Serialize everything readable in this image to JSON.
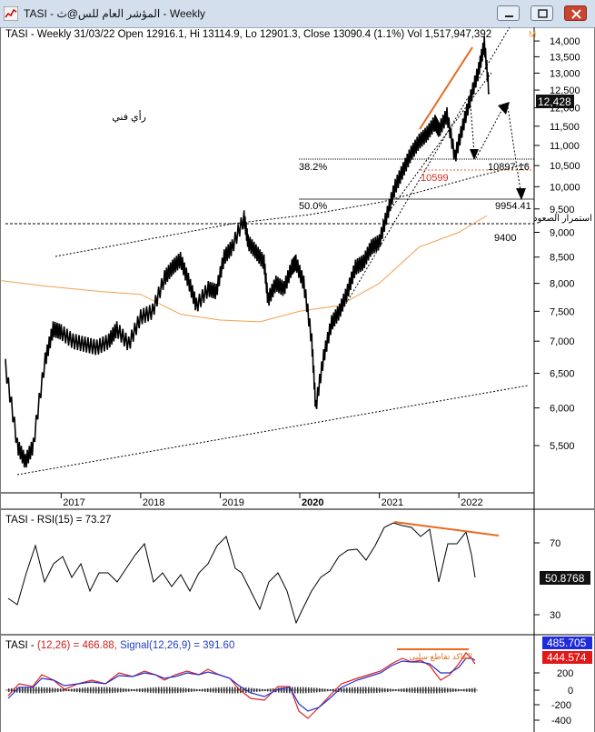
{
  "window": {
    "title": "TASI - المؤشر العام للس@ث - Weekly",
    "accent": "#d4dfee",
    "close_color": "#c9452f"
  },
  "chart_data": [
    {
      "type": "line",
      "panel": "price",
      "header": "TASI - Weekly 31/03/22 Open 12916.1, Hi 13114.9, Lo 12901.3, Close 13090.4 (1.1%) Vol 1,517,947,392",
      "header_marker": "M",
      "x_labels": [
        "2017",
        "2018",
        "2019",
        "2020",
        "2021",
        "2022"
      ],
      "y_ticks": [
        "14,000",
        "13,500",
        "13,000",
        "12,500",
        "12,000",
        "11,500",
        "11,000",
        "10,500",
        "10,000",
        "9,500",
        "9,000",
        "8,500",
        "8,000",
        "7,500",
        "7,000",
        "6,500",
        "6,000",
        "5,500"
      ],
      "ylim": [
        5100,
        14300
      ],
      "last_value_label": "12,428",
      "annotations": {
        "arabic_note": "رأي فني",
        "fib_382": "38.2%",
        "level_10897": "10897.16",
        "level_10599": "10599",
        "fib_50": "50.0%",
        "level_9954": "9954.41",
        "support_note": "مناطق اقتناص أو استمرار الصعود",
        "level_9400": "9400"
      },
      "price_series": [
        [
          2016.3,
          6600
        ],
        [
          2016.45,
          5500
        ],
        [
          2016.55,
          5300
        ],
        [
          2016.65,
          5500
        ],
        [
          2016.8,
          6700
        ],
        [
          2016.9,
          7200
        ],
        [
          2017.0,
          7150
        ],
        [
          2017.15,
          7000
        ],
        [
          2017.3,
          6950
        ],
        [
          2017.45,
          6900
        ],
        [
          2017.6,
          7000
        ],
        [
          2017.7,
          7200
        ],
        [
          2017.85,
          6950
        ],
        [
          2018.0,
          7400
        ],
        [
          2018.15,
          7500
        ],
        [
          2018.3,
          8100
        ],
        [
          2018.4,
          8300
        ],
        [
          2018.5,
          8450
        ],
        [
          2018.6,
          8050
        ],
        [
          2018.7,
          7600
        ],
        [
          2018.85,
          7900
        ],
        [
          2018.95,
          7850
        ],
        [
          2019.05,
          8500
        ],
        [
          2019.15,
          8700
        ],
        [
          2019.3,
          9300
        ],
        [
          2019.35,
          8800
        ],
        [
          2019.45,
          8600
        ],
        [
          2019.55,
          8400
        ],
        [
          2019.6,
          7700
        ],
        [
          2019.7,
          8000
        ],
        [
          2019.8,
          7900
        ],
        [
          2019.9,
          8300
        ],
        [
          2019.95,
          8400
        ],
        [
          2020.05,
          8000
        ],
        [
          2020.15,
          7000
        ],
        [
          2020.2,
          6000
        ],
        [
          2020.3,
          6750
        ],
        [
          2020.4,
          7300
        ],
        [
          2020.5,
          7500
        ],
        [
          2020.6,
          7850
        ],
        [
          2020.7,
          8300
        ],
        [
          2020.8,
          8400
        ],
        [
          2020.9,
          8700
        ],
        [
          2021.0,
          8800
        ],
        [
          2021.1,
          9400
        ],
        [
          2021.2,
          10000
        ],
        [
          2021.3,
          10400
        ],
        [
          2021.4,
          10800
        ],
        [
          2021.5,
          11100
        ],
        [
          2021.6,
          11300
        ],
        [
          2021.7,
          11600
        ],
        [
          2021.75,
          11400
        ],
        [
          2021.85,
          11800
        ],
        [
          2021.95,
          10700
        ],
        [
          2022.05,
          11500
        ],
        [
          2022.15,
          12300
        ],
        [
          2022.25,
          13100
        ],
        [
          2022.32,
          13900
        ],
        [
          2022.38,
          12428
        ]
      ],
      "ma_series": [
        [
          2016.25,
          8050
        ],
        [
          2016.8,
          7950
        ],
        [
          2017.5,
          7850
        ],
        [
          2018.0,
          7800
        ],
        [
          2018.5,
          7450
        ],
        [
          2019.0,
          7350
        ],
        [
          2019.5,
          7320
        ],
        [
          2020.0,
          7500
        ],
        [
          2020.5,
          7600
        ],
        [
          2021.0,
          8000
        ],
        [
          2021.5,
          8700
        ],
        [
          2022.0,
          9000
        ],
        [
          2022.2,
          9200
        ],
        [
          2022.35,
          9350
        ]
      ]
    },
    {
      "type": "line",
      "panel": "rsi",
      "header": "TASI - RSI(15) = 73.27",
      "y_ticks": [
        "70",
        "30"
      ],
      "last_value_label": "50.8768",
      "series": [
        {
          "values": [
            50.8768
          ]
        }
      ]
    },
    {
      "type": "line",
      "panel": "macd",
      "header_prefix": "TASI - ",
      "header_macd": "(12,26) = 466.88,",
      "header_signal": "Signal(12,26,9) = 391.60",
      "y_ticks": [
        "200",
        "0",
        "-200",
        "-400"
      ],
      "macd_label": "485.705",
      "signal_label": "444.574",
      "arabic_note": "الماكد تقاطع سلبي"
    }
  ]
}
